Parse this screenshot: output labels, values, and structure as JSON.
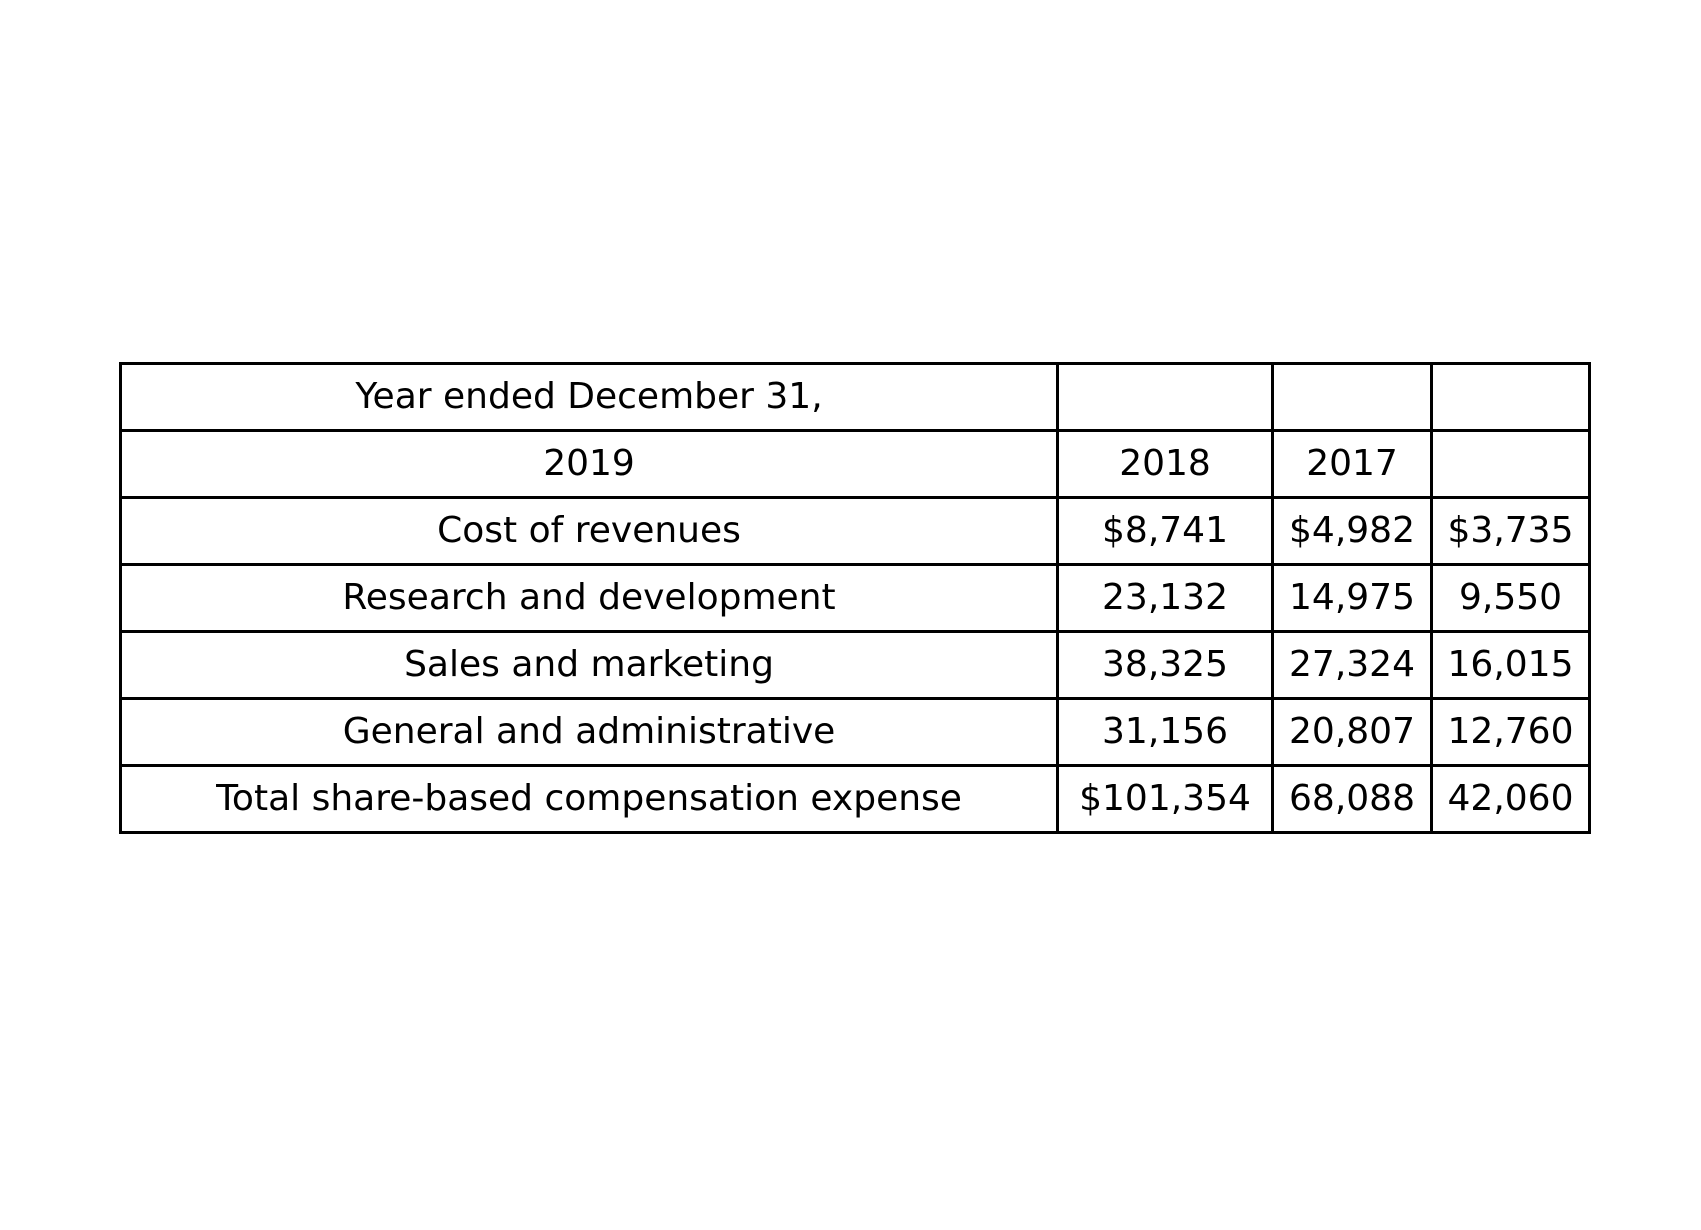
{
  "table": {
    "rows": [
      [
        "Year ended December 31,",
        "",
        "",
        ""
      ],
      [
        "2019",
        "2018",
        "2017",
        ""
      ],
      [
        "Cost of revenues",
        "$8,741",
        "$4,982",
        "$3,735"
      ],
      [
        "Research and development",
        "23,132",
        "14,975",
        "9,550"
      ],
      [
        "Sales and marketing",
        "38,325",
        "27,324",
        "16,015"
      ],
      [
        "General and administrative",
        "31,156",
        "20,807",
        "12,760"
      ],
      [
        "Total share-based compensation expense",
        "$101,354",
        "68,088",
        "42,060"
      ]
    ]
  }
}
